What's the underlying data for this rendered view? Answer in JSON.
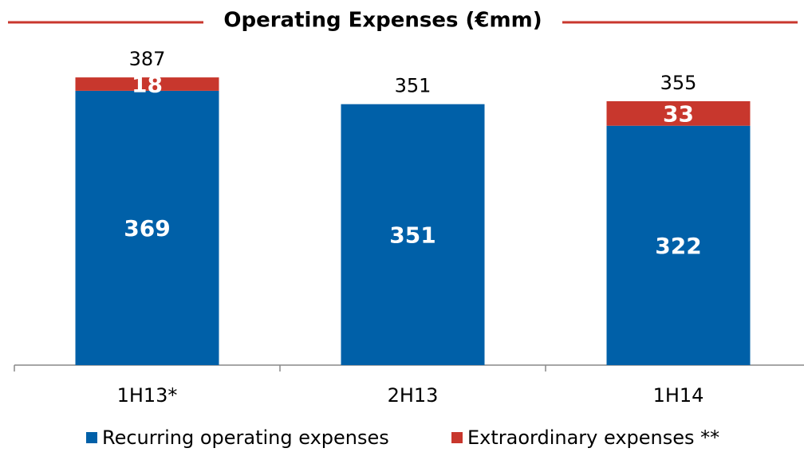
{
  "chart_data": {
    "type": "stacked_bar",
    "title": "Operating Expenses (€mm)",
    "categories": [
      "1H13*",
      "2H13",
      "1H14"
    ],
    "series": [
      {
        "name": "Recurring operating expenses",
        "color": "#0060a8",
        "values": [
          369,
          351,
          322
        ]
      },
      {
        "name": "Extraordinary expenses **",
        "color": "#c8372d",
        "values": [
          18,
          null,
          33
        ]
      }
    ],
    "total_labels": [
      387,
      351,
      355
    ],
    "ylim": [
      0,
      430
    ],
    "legend": "bottom"
  }
}
